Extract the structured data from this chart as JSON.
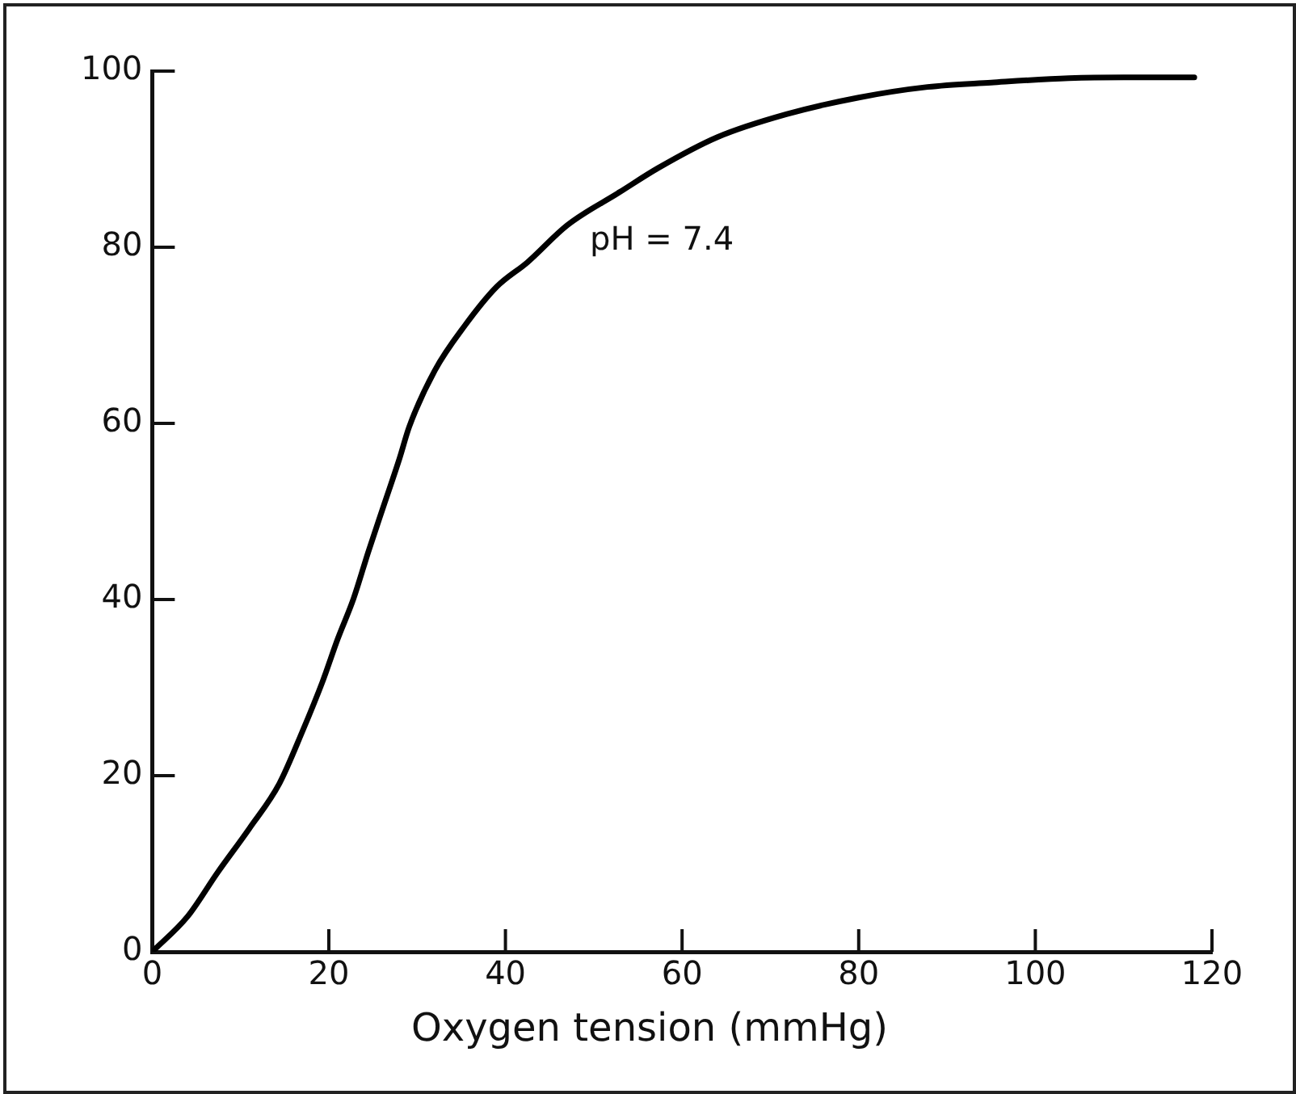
{
  "chart_data": {
    "type": "line",
    "xlabel": "Oxygen tension (mmHg)",
    "x": [
      0,
      4,
      7.4,
      11,
      14.4,
      17,
      19.3,
      21,
      22.8,
      24.5,
      26.3,
      28,
      29.1,
      32,
      35.4,
      39,
      42.5,
      47,
      53,
      57.3,
      64,
      71.8,
      80,
      87.8,
      95,
      103.8,
      110,
      118
    ],
    "series": [
      {
        "color": "#000000",
        "values": [
          0,
          4,
          9,
          14,
          19.1,
          25,
          30.7,
          35.5,
          40.1,
          45.5,
          50.9,
          56,
          59.6,
          66,
          71.1,
          75.5,
          78.3,
          82.5,
          86.3,
          89,
          92.5,
          95.1,
          97,
          98.2,
          98.7,
          99.2,
          99.3,
          99.3
        ]
      }
    ],
    "xlim": [
      0,
      120
    ],
    "xticks": [
      0,
      20,
      40,
      60,
      80,
      100,
      120
    ],
    "ylim": [
      0,
      100
    ],
    "yticks": [
      0,
      20,
      40,
      60,
      80,
      100
    ],
    "grid": false,
    "legend": false,
    "marker": "none",
    "line_style": "solid",
    "annotations": [
      "pH = 7.4"
    ]
  }
}
